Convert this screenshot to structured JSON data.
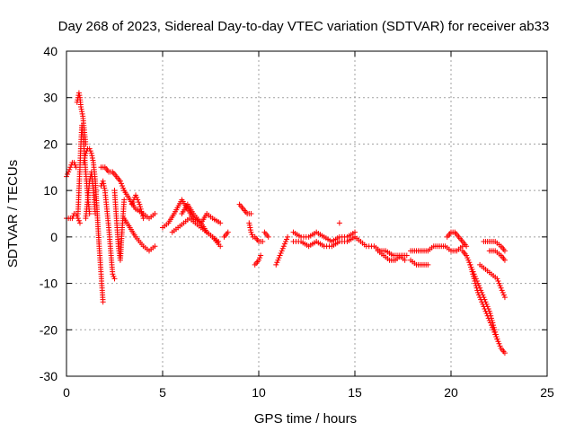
{
  "chart_data": {
    "type": "scatter",
    "title": "Day 268 of 2023, Sidereal Day-to-day VTEC variation (SDTVAR) for receiver ab33",
    "xlabel": "GPS time / hours",
    "ylabel": "SDTVAR / TECUs",
    "xlim": [
      0,
      25
    ],
    "ylim": [
      -30,
      40
    ],
    "xticks": [
      0,
      5,
      10,
      15,
      20,
      25
    ],
    "xtick_labels": [
      "0",
      "5",
      "10",
      "15",
      "20",
      "25"
    ],
    "yticks": [
      -30,
      -20,
      -10,
      0,
      10,
      20,
      30,
      40
    ],
    "ytick_labels": [
      "-30",
      "-20",
      "-10",
      "0",
      "10",
      "20",
      "30",
      "40"
    ],
    "grid": true,
    "marker": "+",
    "series": [
      {
        "name": "SDTVAR",
        "color": "#ff0000",
        "segments": [
          {
            "x": [
              0.0,
              0.1,
              0.2,
              0.3,
              0.4,
              0.5
            ],
            "y": [
              13,
              14,
              15,
              16,
              16,
              15
            ]
          },
          {
            "x": [
              0.0,
              0.1,
              0.2,
              0.3,
              0.4,
              0.5,
              0.6,
              0.7
            ],
            "y": [
              4,
              4,
              4,
              4,
              5,
              5,
              4,
              3
            ]
          },
          {
            "x": [
              0.55,
              0.6,
              0.65,
              0.7,
              0.75,
              0.8,
              0.85,
              0.9,
              0.95,
              1.0
            ],
            "y": [
              29,
              30,
              31,
              30,
              28,
              27,
              26,
              24,
              22,
              20
            ]
          },
          {
            "x": [
              0.6,
              0.65,
              0.7,
              0.75,
              0.8,
              0.9,
              1.0,
              1.1,
              1.2
            ],
            "y": [
              5,
              10,
              15,
              20,
              24,
              20,
              14,
              9,
              5
            ]
          },
          {
            "x": [
              0.9,
              1.0,
              1.1,
              1.2,
              1.3,
              1.4,
              1.5,
              1.6,
              1.7,
              1.8,
              1.9
            ],
            "y": [
              16,
              18,
              19,
              19,
              18,
              16,
              12,
              5,
              -2,
              -8,
              -14
            ]
          },
          {
            "x": [
              1.0,
              1.1,
              1.2,
              1.3,
              1.4,
              1.5
            ],
            "y": [
              4,
              8,
              12,
              14,
              10,
              5
            ]
          },
          {
            "x": [
              1.8,
              2.0,
              2.2,
              2.4,
              2.6,
              2.8,
              3.0
            ],
            "y": [
              15,
              15,
              14,
              14,
              13,
              12,
              10
            ]
          },
          {
            "x": [
              1.8,
              1.9,
              2.0,
              2.1,
              2.2,
              2.3,
              2.4,
              2.5
            ],
            "y": [
              11,
              12,
              10,
              6,
              2,
              -3,
              -8,
              -9
            ]
          },
          {
            "x": [
              2.5,
              2.6,
              2.7,
              2.8,
              2.9,
              3.0
            ],
            "y": [
              10,
              4,
              -2,
              -5,
              2,
              8
            ]
          },
          {
            "x": [
              3.0,
              3.3,
              3.6,
              4.0,
              4.3,
              4.6
            ],
            "y": [
              10,
              8,
              6,
              5,
              4,
              5
            ]
          },
          {
            "x": [
              3.0,
              3.3,
              3.6,
              4.0,
              4.3,
              4.6
            ],
            "y": [
              4,
              2,
              0,
              -2,
              -3,
              -2
            ]
          },
          {
            "x": [
              3.4,
              3.6,
              3.8,
              4.0
            ],
            "y": [
              7,
              9,
              7,
              4
            ]
          },
          {
            "x": [
              5.0,
              5.3,
              5.6,
              6.0,
              6.3,
              6.6,
              7.0,
              7.3,
              7.6,
              8.0
            ],
            "y": [
              2,
              3,
              5,
              8,
              6,
              4,
              3,
              1,
              0,
              -2
            ]
          },
          {
            "x": [
              5.5,
              5.8,
              6.1,
              6.4,
              6.7,
              7.0,
              7.3,
              7.6,
              7.9
            ],
            "y": [
              1,
              2,
              3,
              4,
              3,
              2,
              1,
              0,
              -1
            ]
          },
          {
            "x": [
              6.0,
              6.3,
              6.6,
              7.0,
              7.3,
              7.6,
              8.0
            ],
            "y": [
              5,
              7,
              5,
              3,
              5,
              4,
              3
            ]
          },
          {
            "x": [
              8.2,
              8.4
            ],
            "y": [
              0,
              1
            ]
          },
          {
            "x": [
              9.0,
              9.2,
              9.4,
              9.6
            ],
            "y": [
              7,
              6,
              5,
              5
            ]
          },
          {
            "x": [
              9.5,
              9.6,
              9.7
            ],
            "y": [
              3,
              1,
              0
            ]
          },
          {
            "x": [
              9.8,
              10.0,
              10.1
            ],
            "y": [
              -6,
              -5,
              -4
            ]
          },
          {
            "x": [
              9.8,
              10.0,
              10.2
            ],
            "y": [
              0,
              -1,
              -1
            ]
          },
          {
            "x": [
              10.3,
              10.5
            ],
            "y": [
              1,
              0
            ]
          },
          {
            "x": [
              10.9,
              11.1,
              11.3,
              11.5
            ],
            "y": [
              -6,
              -4,
              -2,
              0
            ]
          },
          {
            "x": [
              11.8,
              12.2,
              12.6,
              13.0,
              13.4,
              13.8,
              14.2,
              14.6,
              15.0
            ],
            "y": [
              1,
              0,
              0,
              1,
              0,
              -1,
              0,
              0,
              1
            ]
          },
          {
            "x": [
              11.8,
              12.2,
              12.6,
              13.0,
              13.4,
              13.8,
              14.2,
              14.6,
              15.0
            ],
            "y": [
              -1,
              -1,
              -2,
              -1,
              -2,
              -2,
              -1,
              -1,
              0
            ]
          },
          {
            "x": [
              14.2
            ],
            "y": [
              3
            ]
          },
          {
            "x": [
              15.0,
              15.3,
              15.6,
              16.0,
              16.3,
              16.6,
              17.0,
              17.3,
              17.6
            ],
            "y": [
              0,
              -1,
              -2,
              -2,
              -3,
              -3,
              -4,
              -4,
              -5
            ]
          },
          {
            "x": [
              16.2,
              16.5,
              16.8,
              17.1,
              17.4,
              17.7
            ],
            "y": [
              -3,
              -4,
              -5,
              -5,
              -4,
              -4
            ]
          },
          {
            "x": [
              17.9,
              18.2,
              18.5,
              18.8,
              19.1,
              19.4,
              19.7,
              20.0,
              20.3,
              20.6
            ],
            "y": [
              -3,
              -3,
              -3,
              -3,
              -2,
              -2,
              -2,
              -3,
              -3,
              -2
            ]
          },
          {
            "x": [
              17.9,
              18.2,
              18.5,
              18.8
            ],
            "y": [
              -5,
              -6,
              -6,
              -6
            ]
          },
          {
            "x": [
              19.8,
              20.0,
              20.2,
              20.4,
              20.6,
              20.8
            ],
            "y": [
              0,
              1,
              1,
              0,
              -1,
              -2
            ]
          },
          {
            "x": [
              20.6,
              20.8,
              21.0,
              21.2,
              21.4,
              21.6,
              21.8,
              22.0,
              22.2,
              22.4,
              22.6,
              22.8
            ],
            "y": [
              -3,
              -4,
              -6,
              -9,
              -12,
              -14,
              -16,
              -18,
              -20,
              -22,
              -24,
              -25
            ]
          },
          {
            "x": [
              21.0,
              21.2,
              21.4,
              21.6,
              21.8,
              22.0,
              22.2,
              22.4
            ],
            "y": [
              -6,
              -8,
              -10,
              -12,
              -14,
              -16,
              -19,
              -22
            ]
          },
          {
            "x": [
              21.5,
              21.8,
              22.1,
              22.4,
              22.6,
              22.8
            ],
            "y": [
              -6,
              -7,
              -8,
              -9,
              -11,
              -13
            ]
          },
          {
            "x": [
              21.7,
              22.0,
              22.3,
              22.6,
              22.8
            ],
            "y": [
              -1,
              -1,
              -1,
              -2,
              -3
            ]
          },
          {
            "x": [
              22.0,
              22.3,
              22.6,
              22.8
            ],
            "y": [
              -3,
              -3,
              -4,
              -5
            ]
          }
        ]
      }
    ]
  }
}
